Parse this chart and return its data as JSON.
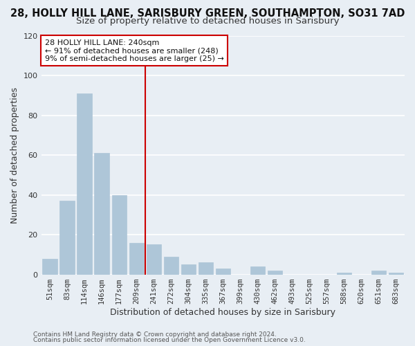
{
  "title": "28, HOLLY HILL LANE, SARISBURY GREEN, SOUTHAMPTON, SO31 7AD",
  "subtitle": "Size of property relative to detached houses in Sarisbury",
  "xlabel": "Distribution of detached houses by size in Sarisbury",
  "ylabel": "Number of detached properties",
  "bar_labels": [
    "51sqm",
    "83sqm",
    "114sqm",
    "146sqm",
    "177sqm",
    "209sqm",
    "241sqm",
    "272sqm",
    "304sqm",
    "335sqm",
    "367sqm",
    "399sqm",
    "430sqm",
    "462sqm",
    "493sqm",
    "525sqm",
    "557sqm",
    "588sqm",
    "620sqm",
    "651sqm",
    "683sqm"
  ],
  "bar_values": [
    8,
    37,
    91,
    61,
    40,
    16,
    15,
    9,
    5,
    6,
    3,
    0,
    4,
    2,
    0,
    0,
    0,
    1,
    0,
    2,
    1
  ],
  "bar_color": "#aec6d8",
  "vline_index": 6,
  "vline_color": "#cc0000",
  "annotation_title": "28 HOLLY HILL LANE: 240sqm",
  "annotation_line1": "← 91% of detached houses are smaller (248)",
  "annotation_line2": "9% of semi-detached houses are larger (25) →",
  "annotation_box_facecolor": "#ffffff",
  "annotation_box_edgecolor": "#cc0000",
  "ylim": [
    0,
    120
  ],
  "yticks": [
    0,
    20,
    40,
    60,
    80,
    100,
    120
  ],
  "footer1": "Contains HM Land Registry data © Crown copyright and database right 2024.",
  "footer2": "Contains public sector information licensed under the Open Government Licence v3.0.",
  "bg_color": "#e8eef4",
  "grid_color": "#ffffff",
  "title_fontsize": 10.5,
  "subtitle_fontsize": 9.5,
  "axis_label_fontsize": 9,
  "tick_fontsize": 7.5,
  "annotation_fontsize": 8,
  "footer_fontsize": 6.5
}
